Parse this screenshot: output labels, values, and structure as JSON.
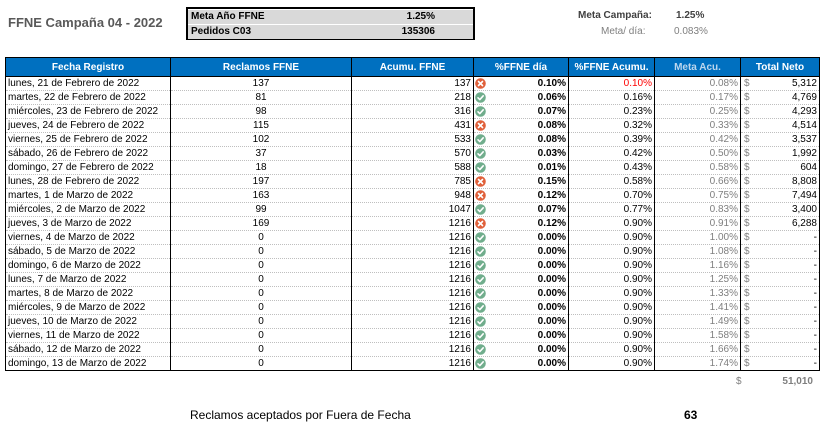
{
  "title": "FFNE Campaña 04 - 2022",
  "meta_box": {
    "row1_label": "Meta Año FFNE",
    "row1_value": "1.25%",
    "row2_label": "Pedidos C03",
    "row2_value": "135306"
  },
  "meta_campana": {
    "label": "Meta Campaña:",
    "value": "1.25%"
  },
  "meta_dia": {
    "label": "Meta/ día:",
    "value": "0.083%"
  },
  "table": {
    "headers": [
      "Fecha Registro",
      "Reclamos FFNE",
      "Acumu. FFNE",
      "%FFNE día",
      "%FFNE Acumu.",
      "Meta Acu.",
      "Total Neto"
    ],
    "currency_symbol": "$",
    "rows": [
      {
        "fecha": "lunes, 21 de Febrero de 2022",
        "reclamos": "137",
        "acum": "137",
        "icon": "cross",
        "pct": "0.10%",
        "pct_acu": "0.10%",
        "pct_acu_red": true,
        "meta": "0.08%",
        "total": "5,312"
      },
      {
        "fecha": "martes, 22 de Febrero de 2022",
        "reclamos": "81",
        "acum": "218",
        "icon": "check",
        "pct": "0.06%",
        "pct_acu": "0.16%",
        "pct_acu_red": false,
        "meta": "0.17%",
        "total": "4,769"
      },
      {
        "fecha": "miércoles, 23 de Febrero de 2022",
        "reclamos": "98",
        "acum": "316",
        "icon": "check",
        "pct": "0.07%",
        "pct_acu": "0.23%",
        "pct_acu_red": false,
        "meta": "0.25%",
        "total": "4,293"
      },
      {
        "fecha": "jueves, 24 de Febrero de 2022",
        "reclamos": "115",
        "acum": "431",
        "icon": "cross",
        "pct": "0.08%",
        "pct_acu": "0.32%",
        "pct_acu_red": false,
        "meta": "0.33%",
        "total": "4,514"
      },
      {
        "fecha": "viernes, 25 de Febrero de 2022",
        "reclamos": "102",
        "acum": "533",
        "icon": "check",
        "pct": "0.08%",
        "pct_acu": "0.39%",
        "pct_acu_red": false,
        "meta": "0.42%",
        "total": "3,537"
      },
      {
        "fecha": "sábado, 26 de Febrero de 2022",
        "reclamos": "37",
        "acum": "570",
        "icon": "check",
        "pct": "0.03%",
        "pct_acu": "0.42%",
        "pct_acu_red": false,
        "meta": "0.50%",
        "total": "1,992"
      },
      {
        "fecha": "domingo, 27 de Febrero de 2022",
        "reclamos": "18",
        "acum": "588",
        "icon": "check",
        "pct": "0.01%",
        "pct_acu": "0.43%",
        "pct_acu_red": false,
        "meta": "0.58%",
        "total": "604"
      },
      {
        "fecha": "lunes, 28 de Febrero de 2022",
        "reclamos": "197",
        "acum": "785",
        "icon": "cross",
        "pct": "0.15%",
        "pct_acu": "0.58%",
        "pct_acu_red": false,
        "meta": "0.66%",
        "total": "8,808"
      },
      {
        "fecha": "martes, 1 de Marzo de 2022",
        "reclamos": "163",
        "acum": "948",
        "icon": "cross",
        "pct": "0.12%",
        "pct_acu": "0.70%",
        "pct_acu_red": false,
        "meta": "0.75%",
        "total": "7,494"
      },
      {
        "fecha": "miércoles, 2 de Marzo de 2022",
        "reclamos": "99",
        "acum": "1047",
        "icon": "check",
        "pct": "0.07%",
        "pct_acu": "0.77%",
        "pct_acu_red": false,
        "meta": "0.83%",
        "total": "3,400"
      },
      {
        "fecha": "jueves, 3 de Marzo de 2022",
        "reclamos": "169",
        "acum": "1216",
        "icon": "cross",
        "pct": "0.12%",
        "pct_acu": "0.90%",
        "pct_acu_red": false,
        "meta": "0.91%",
        "total": "6,288"
      },
      {
        "fecha": "viernes, 4 de Marzo de 2022",
        "reclamos": "0",
        "acum": "1216",
        "icon": "check",
        "pct": "0.00%",
        "pct_acu": "0.90%",
        "pct_acu_red": false,
        "meta": "1.00%",
        "total": "-"
      },
      {
        "fecha": "sábado, 5 de Marzo de 2022",
        "reclamos": "0",
        "acum": "1216",
        "icon": "check",
        "pct": "0.00%",
        "pct_acu": "0.90%",
        "pct_acu_red": false,
        "meta": "1.08%",
        "total": "-"
      },
      {
        "fecha": "domingo, 6 de Marzo de 2022",
        "reclamos": "0",
        "acum": "1216",
        "icon": "check",
        "pct": "0.00%",
        "pct_acu": "0.90%",
        "pct_acu_red": false,
        "meta": "1.16%",
        "total": "-"
      },
      {
        "fecha": "lunes, 7 de Marzo de 2022",
        "reclamos": "0",
        "acum": "1216",
        "icon": "check",
        "pct": "0.00%",
        "pct_acu": "0.90%",
        "pct_acu_red": false,
        "meta": "1.25%",
        "total": "-"
      },
      {
        "fecha": "martes, 8 de Marzo de 2022",
        "reclamos": "0",
        "acum": "1216",
        "icon": "check",
        "pct": "0.00%",
        "pct_acu": "0.90%",
        "pct_acu_red": false,
        "meta": "1.33%",
        "total": "-"
      },
      {
        "fecha": "miércoles, 9 de Marzo de 2022",
        "reclamos": "0",
        "acum": "1216",
        "icon": "check",
        "pct": "0.00%",
        "pct_acu": "0.90%",
        "pct_acu_red": false,
        "meta": "1.41%",
        "total": "-"
      },
      {
        "fecha": "jueves, 10 de Marzo de 2022",
        "reclamos": "0",
        "acum": "1216",
        "icon": "check",
        "pct": "0.00%",
        "pct_acu": "0.90%",
        "pct_acu_red": false,
        "meta": "1.49%",
        "total": "-"
      },
      {
        "fecha": "viernes, 11 de Marzo de 2022",
        "reclamos": "0",
        "acum": "1216",
        "icon": "check",
        "pct": "0.00%",
        "pct_acu": "0.90%",
        "pct_acu_red": false,
        "meta": "1.58%",
        "total": "-"
      },
      {
        "fecha": "sábado, 12 de Marzo de 2022",
        "reclamos": "0",
        "acum": "1216",
        "icon": "check",
        "pct": "0.00%",
        "pct_acu": "0.90%",
        "pct_acu_red": false,
        "meta": "1.66%",
        "total": "-"
      },
      {
        "fecha": "domingo, 13 de Marzo de 2022",
        "reclamos": "0",
        "acum": "1216",
        "icon": "check",
        "pct": "0.00%",
        "pct_acu": "0.90%",
        "pct_acu_red": false,
        "meta": "1.74%",
        "total": "-"
      }
    ],
    "sum_total": "51,010"
  },
  "footer": {
    "label": "Reclamos aceptados por Fuera de Fecha",
    "value": "63"
  },
  "colors": {
    "header_bg": "#0070c0",
    "check": "#70ad8c",
    "cross": "#e0603a",
    "red_text": "#ff0000"
  }
}
